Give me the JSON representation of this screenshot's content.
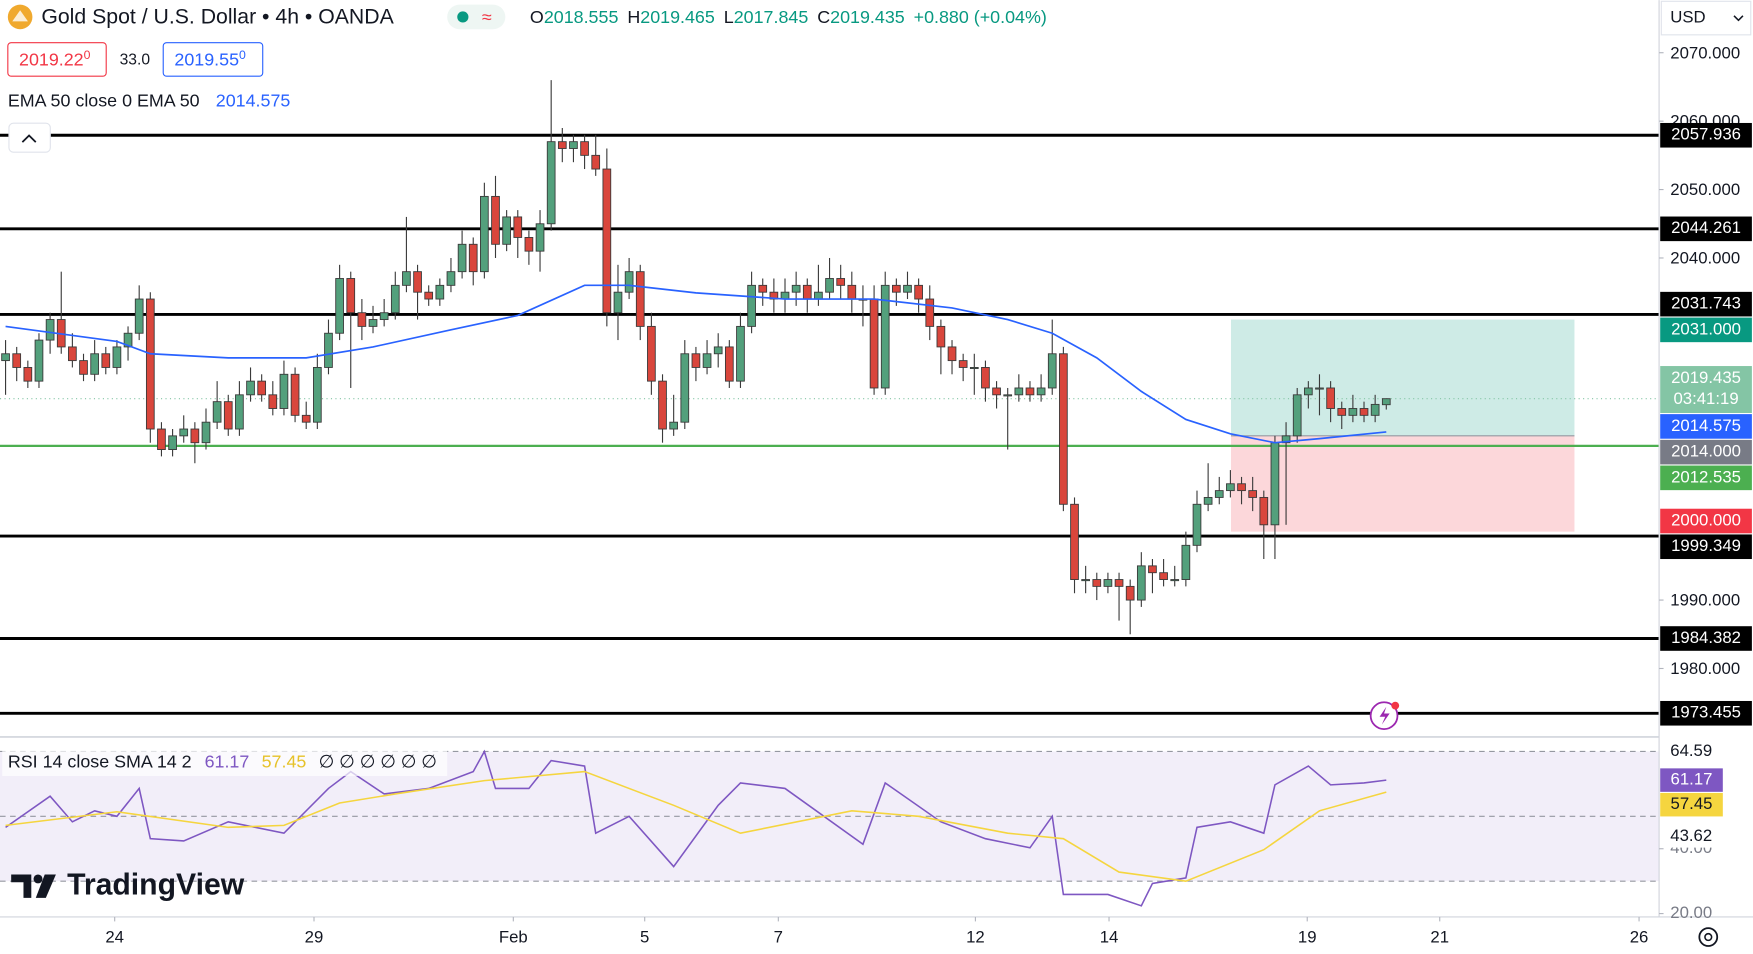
{
  "header": {
    "symbol": "Gold Spot / U.S. Dollar • 4h • OANDA",
    "ohlc": [
      [
        "O",
        "2018.555"
      ],
      [
        "H",
        "2019.465"
      ],
      [
        "L",
        "2017.845"
      ],
      [
        "C",
        "2019.435"
      ]
    ],
    "change": "+0.880 (+0.04%)",
    "bid": "2019.22",
    "bid_pip": "0",
    "spread": "33.0",
    "ask": "2019.55",
    "ask_pip": "0",
    "indicator": "EMA 50 close 0 EMA 50",
    "indicator_value": "2014.575",
    "currency": "USD"
  },
  "chart_data": {
    "type": "candlestick",
    "up_color": "#53a07c",
    "down_color": "#d9463c",
    "xlim": [
      -0.5,
      148.5
    ],
    "ylim": [
      1970.65,
      2077.68
    ],
    "xticks": [
      {
        "value": 9.8,
        "label": "24"
      },
      {
        "value": 27.7,
        "label": "29"
      },
      {
        "value": 45.6,
        "label": "Feb"
      },
      {
        "value": 57.4,
        "label": "5"
      },
      {
        "value": 69.4,
        "label": "7"
      },
      {
        "value": 87.1,
        "label": "12"
      },
      {
        "value": 99.1,
        "label": "14"
      },
      {
        "value": 116.9,
        "label": "19"
      },
      {
        "value": 128.8,
        "label": "21"
      },
      {
        "value": 146.7,
        "label": "26"
      }
    ],
    "yticks": [
      {
        "value": 2070,
        "label": "2070.000"
      },
      {
        "value": 2060,
        "label": "2060.000"
      },
      {
        "value": 2050,
        "label": "2050.000"
      },
      {
        "value": 2040,
        "label": "2040.000"
      },
      {
        "value": 1990,
        "label": "1990.000"
      },
      {
        "value": 1980,
        "label": "1980.000"
      }
    ],
    "candles": [
      [
        2025,
        2028,
        2020,
        2026
      ],
      [
        2026,
        2027,
        2022,
        2024
      ],
      [
        2024,
        2025,
        2021,
        2022
      ],
      [
        2022,
        2029,
        2021,
        2028
      ],
      [
        2028,
        2032,
        2026,
        2031
      ],
      [
        2031,
        2038,
        2026,
        2027
      ],
      [
        2027,
        2029,
        2024,
        2025
      ],
      [
        2025,
        2026,
        2022,
        2023
      ],
      [
        2023,
        2028,
        2022,
        2026
      ],
      [
        2026,
        2027,
        2023,
        2024
      ],
      [
        2024,
        2028,
        2023,
        2027
      ],
      [
        2027,
        2030,
        2025,
        2029
      ],
      [
        2029,
        2036,
        2028,
        2034
      ],
      [
        2034,
        2035,
        2013,
        2015
      ],
      [
        2015,
        2016,
        2011,
        2012
      ],
      [
        2012,
        2015,
        2011,
        2014
      ],
      [
        2014,
        2017,
        2013,
        2015
      ],
      [
        2015,
        2016,
        2010,
        2013
      ],
      [
        2013,
        2018,
        2012,
        2016
      ],
      [
        2016,
        2022,
        2015,
        2019
      ],
      [
        2019,
        2020,
        2014,
        2015
      ],
      [
        2015,
        2022,
        2014,
        2020
      ],
      [
        2020,
        2024,
        2019,
        2022
      ],
      [
        2022,
        2023,
        2019,
        2020
      ],
      [
        2020,
        2022,
        2017,
        2018
      ],
      [
        2018,
        2025,
        2017,
        2023
      ],
      [
        2023,
        2024,
        2016,
        2017
      ],
      [
        2017,
        2019,
        2015,
        2016
      ],
      [
        2016,
        2026,
        2015,
        2024
      ],
      [
        2024,
        2031,
        2023,
        2029
      ],
      [
        2029,
        2039,
        2028,
        2037
      ],
      [
        2037,
        2038,
        2021,
        2032
      ],
      [
        2032,
        2034,
        2028,
        2030
      ],
      [
        2030,
        2033,
        2029,
        2031
      ],
      [
        2031,
        2034,
        2030,
        2032
      ],
      [
        2032,
        2038,
        2031,
        2036
      ],
      [
        2036,
        2046,
        2035,
        2038
      ],
      [
        2038,
        2039,
        2031,
        2035
      ],
      [
        2035,
        2036,
        2033,
        2034
      ],
      [
        2034,
        2037,
        2033,
        2036
      ],
      [
        2036,
        2040,
        2035,
        2038
      ],
      [
        2038,
        2044,
        2037,
        2042
      ],
      [
        2042,
        2043,
        2036,
        2038
      ],
      [
        2038,
        2051,
        2037,
        2049
      ],
      [
        2049,
        2052,
        2040,
        2042
      ],
      [
        2042,
        2047,
        2041,
        2046
      ],
      [
        2046,
        2047,
        2040,
        2043
      ],
      [
        2043,
        2044,
        2039,
        2041
      ],
      [
        2041,
        2047,
        2038,
        2045
      ],
      [
        2045,
        2066,
        2044,
        2057
      ],
      [
        2057,
        2059,
        2054,
        2056
      ],
      [
        2056,
        2058,
        2054,
        2057
      ],
      [
        2057,
        2058,
        2053,
        2055
      ],
      [
        2055,
        2058,
        2052,
        2053
      ],
      [
        2053,
        2056,
        2030,
        2032
      ],
      [
        2032,
        2039,
        2028,
        2035
      ],
      [
        2035,
        2040,
        2034,
        2038
      ],
      [
        2038,
        2039,
        2028,
        2030
      ],
      [
        2030,
        2032,
        2020,
        2022
      ],
      [
        2022,
        2023,
        2013,
        2015
      ],
      [
        2015,
        2020,
        2014,
        2016
      ],
      [
        2016,
        2028,
        2015,
        2026
      ],
      [
        2026,
        2027,
        2022,
        2024
      ],
      [
        2024,
        2028,
        2023,
        2026
      ],
      [
        2026,
        2029,
        2024,
        2027
      ],
      [
        2027,
        2028,
        2021,
        2022
      ],
      [
        2022,
        2032,
        2021,
        2030
      ],
      [
        2030,
        2038,
        2029,
        2036
      ],
      [
        2036,
        2037,
        2033,
        2035
      ],
      [
        2035,
        2037,
        2032,
        2034
      ],
      [
        2034,
        2037,
        2032,
        2035
      ],
      [
        2035,
        2038,
        2033,
        2036
      ],
      [
        2036,
        2037,
        2032,
        2034
      ],
      [
        2034,
        2039,
        2033,
        2035
      ],
      [
        2035,
        2040,
        2034,
        2037
      ],
      [
        2037,
        2039,
        2034,
        2036
      ],
      [
        2036,
        2038,
        2032,
        2034
      ],
      [
        2034,
        2036,
        2030,
        2034
      ],
      [
        2034,
        2036,
        2020,
        2021
      ],
      [
        2021,
        2038,
        2020,
        2036
      ],
      [
        2036,
        2037,
        2033,
        2035
      ],
      [
        2035,
        2038,
        2034,
        2036
      ],
      [
        2036,
        2037,
        2032,
        2034
      ],
      [
        2034,
        2036,
        2028,
        2030
      ],
      [
        2030,
        2031,
        2023,
        2027
      ],
      [
        2027,
        2028,
        2023,
        2025
      ],
      [
        2025,
        2026,
        2022,
        2024
      ],
      [
        2024,
        2026,
        2020,
        2024
      ],
      [
        2024,
        2025,
        2019,
        2021
      ],
      [
        2021,
        2022,
        2018,
        2020
      ],
      [
        2020,
        2021,
        2012,
        2020
      ],
      [
        2020,
        2023,
        2019,
        2021
      ],
      [
        2021,
        2022,
        2019,
        2020
      ],
      [
        2020,
        2023,
        2019,
        2021
      ],
      [
        2021,
        2031,
        2020,
        2026
      ],
      [
        2026,
        2027,
        2003,
        2004
      ],
      [
        2004,
        2005,
        1991,
        1993
      ],
      [
        1993,
        1995,
        1991,
        1993
      ],
      [
        1993,
        1994,
        1990,
        1992
      ],
      [
        1992,
        1994,
        1991,
        1993
      ],
      [
        1993,
        1994,
        1987,
        1992
      ],
      [
        1992,
        1993,
        1985,
        1990
      ],
      [
        1990,
        1997,
        1989,
        1995
      ],
      [
        1995,
        1996,
        1991,
        1994
      ],
      [
        1994,
        1996,
        1992,
        1993
      ],
      [
        1993,
        1995,
        1992,
        1993
      ],
      [
        1993,
        2000,
        1992,
        1998
      ],
      [
        1998,
        2006,
        1997,
        2004
      ],
      [
        2004,
        2010,
        2003,
        2005
      ],
      [
        2005,
        2008,
        2004,
        2006
      ],
      [
        2006,
        2009,
        2005,
        2007
      ],
      [
        2007,
        2008,
        2004,
        2006
      ],
      [
        2006,
        2008,
        2003,
        2005
      ],
      [
        2005,
        2006,
        1996,
        2001
      ],
      [
        2001,
        2014,
        1996,
        2013
      ],
      [
        2013,
        2016,
        2001,
        2014
      ],
      [
        2014,
        2021,
        2013,
        2020
      ],
      [
        2020,
        2022,
        2018,
        2021
      ],
      [
        2021,
        2023,
        2017,
        2021
      ],
      [
        2021,
        2022,
        2016,
        2018
      ],
      [
        2018,
        2019,
        2015,
        2017
      ],
      [
        2017,
        2020,
        2016,
        2018
      ],
      [
        2018,
        2019,
        2016,
        2017
      ],
      [
        2017,
        2020,
        2016,
        2018.6
      ],
      [
        2018.555,
        2019.465,
        2017.845,
        2019.435
      ]
    ],
    "ema": {
      "color": "#2962ff",
      "label": "2014.575",
      "x": [
        0,
        10,
        13,
        20,
        27,
        33,
        40,
        46,
        52,
        56,
        62,
        70,
        78,
        85,
        90,
        94,
        98,
        102,
        106,
        110,
        114,
        118,
        124
      ],
      "values": [
        2030,
        2027.8,
        2026,
        2025.4,
        2025.4,
        2027,
        2029.5,
        2031.6,
        2036,
        2036,
        2034.9,
        2034,
        2034,
        2032.7,
        2031,
        2029,
        2025.4,
        2020.5,
        2016.4,
        2014.3,
        2013,
        2013.6,
        2014.575
      ]
    },
    "levels": [
      {
        "value": 2057.936,
        "label": "2057.936",
        "color": "#000000"
      },
      {
        "value": 2044.261,
        "label": "2044.261",
        "color": "#000000"
      },
      {
        "value": 2031.743,
        "label": "2031.743",
        "color": "#000000"
      },
      {
        "value": 2012.535,
        "label": "2012.535",
        "color": "#4caf50"
      },
      {
        "value": 1999.349,
        "label": "1999.349",
        "color": "#000000"
      },
      {
        "value": 1984.382,
        "label": "1984.382",
        "color": "#000000"
      },
      {
        "value": 1973.455,
        "label": "1973.455",
        "color": "#000000"
      }
    ],
    "position": {
      "x": [
        110.05,
        140.9
      ],
      "target": {
        "value": 2031,
        "label": "2031.000",
        "color": "#089981"
      },
      "entry": {
        "value": 2014,
        "label": "2014.000",
        "color": "#787b86"
      },
      "stop": {
        "value": 2000,
        "label": "2000.000",
        "color": "#f23645"
      }
    },
    "last_price": {
      "value": 2019.435,
      "label": "2019.435",
      "countdown": "03:41:19",
      "color": "#84c5a5"
    }
  },
  "rsi": {
    "title": "RSI 14 close SMA 14 2",
    "empty": "∅ ∅ ∅ ∅ ∅ ∅",
    "ylim": [
      18.97,
      74.14
    ],
    "bands": [
      70,
      50,
      30
    ],
    "yticks": [
      {
        "value": 40,
        "label": "40.00"
      },
      {
        "value": 20,
        "label": "20.00"
      }
    ],
    "range_labels": [
      "64.59",
      "43.62"
    ],
    "series": [
      {
        "color": "#7e57c2",
        "label": "61.17",
        "x": [
          0,
          4,
          6,
          8,
          10,
          12,
          13,
          16,
          20,
          25,
          29,
          31,
          34,
          38,
          42,
          43,
          44,
          47,
          49,
          52,
          53,
          56,
          60,
          64,
          66,
          70,
          77,
          79,
          84,
          88,
          92,
          94,
          95,
          99,
          102,
          103,
          106,
          107,
          110,
          113,
          114,
          117,
          119,
          122,
          124
        ],
        "values": [
          46.6,
          56.2,
          48.3,
          51.7,
          50,
          58.6,
          43.1,
          42.4,
          48.3,
          44.8,
          58.6,
          63.8,
          56.9,
          58.6,
          63.8,
          70,
          58.6,
          58.6,
          67.2,
          65.5,
          44.8,
          50,
          34.5,
          53.4,
          60.3,
          58.6,
          41.4,
          60.3,
          48.3,
          43.1,
          40.3,
          50,
          25.9,
          25.9,
          22.4,
          29.3,
          31,
          46.6,
          48.3,
          44.8,
          59.7,
          65.5,
          59.7,
          60.3,
          61.17
        ]
      },
      {
        "color": "#f5d53f",
        "label": "57.45",
        "x": [
          0,
          10,
          20,
          25,
          30,
          35,
          43,
          52,
          60,
          66,
          76,
          82,
          90,
          95,
          100,
          106,
          113,
          118,
          124
        ],
        "values": [
          47.2,
          51.4,
          46.6,
          47.2,
          54.1,
          56.9,
          61,
          63.8,
          53.4,
          44.8,
          51.7,
          50,
          44.8,
          43.1,
          32.8,
          30,
          39.7,
          51.7,
          57.45
        ]
      }
    ]
  },
  "watermark": "TradingView"
}
